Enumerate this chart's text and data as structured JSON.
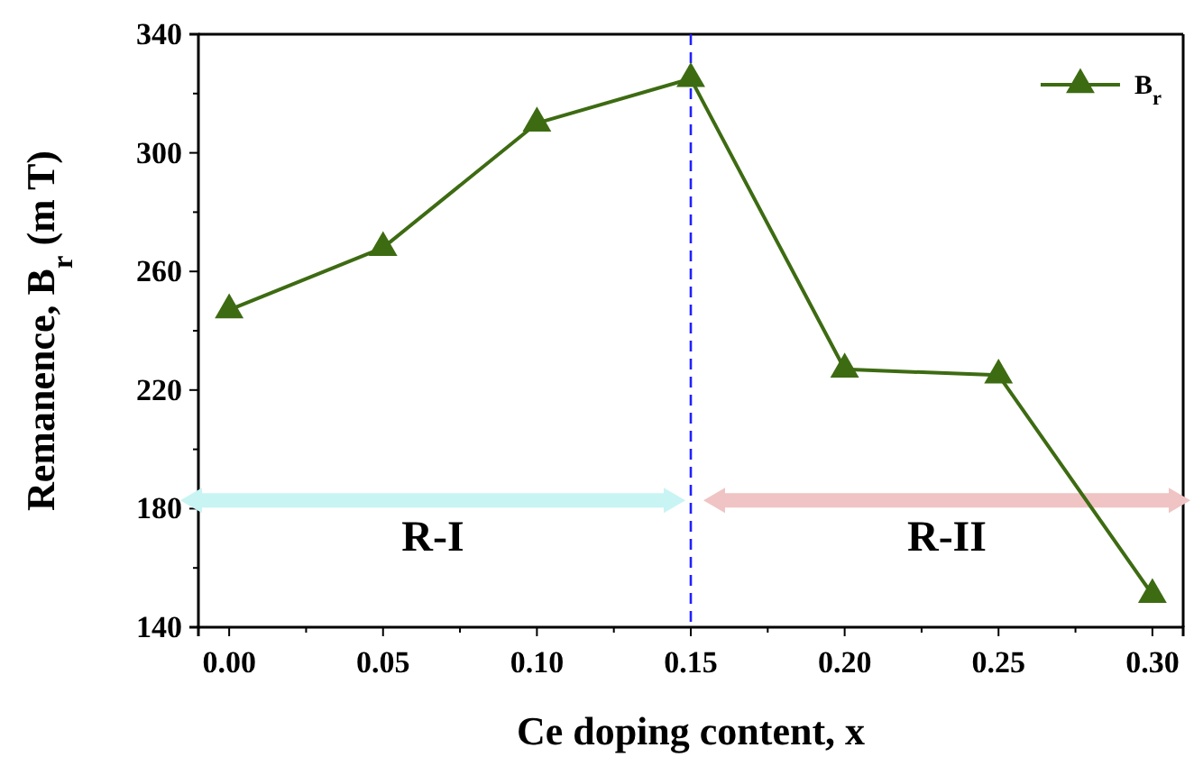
{
  "chart_data": {
    "type": "line",
    "xlabel": "Ce doping content, x",
    "ylabel": "Remanence, B$_{r}$ (m T)",
    "x": [
      0,
      0.05,
      0.1,
      0.15,
      0.2,
      0.25,
      0.3
    ],
    "series": [
      {
        "name": "B$_{r}$",
        "color": "#3d6b12",
        "values": [
          247,
          268,
          310,
          325,
          227,
          225,
          151
        ]
      }
    ],
    "xlim": [
      -0.01,
      0.31
    ],
    "xticks": [
      {
        "value": 0,
        "label": "0.00"
      },
      {
        "value": 0.05,
        "label": "0.05"
      },
      {
        "value": 0.1,
        "label": "0.10"
      },
      {
        "value": 0.15,
        "label": "0.15"
      },
      {
        "value": 0.2,
        "label": "0.20"
      },
      {
        "value": 0.25,
        "label": "0.25"
      },
      {
        "value": 0.3,
        "label": "0.30"
      }
    ],
    "ylim": [
      140,
      340
    ],
    "yticks": [
      140,
      180,
      220,
      260,
      300,
      340
    ],
    "marker": "triangle",
    "line_style": "solid",
    "legend": "top right",
    "grid": false,
    "ref_lines": [
      {
        "axis": "x",
        "value": 0.15,
        "color": "#2020ff",
        "line_style": "dashed"
      }
    ],
    "annotations": [
      "R-I",
      "R-II"
    ]
  }
}
